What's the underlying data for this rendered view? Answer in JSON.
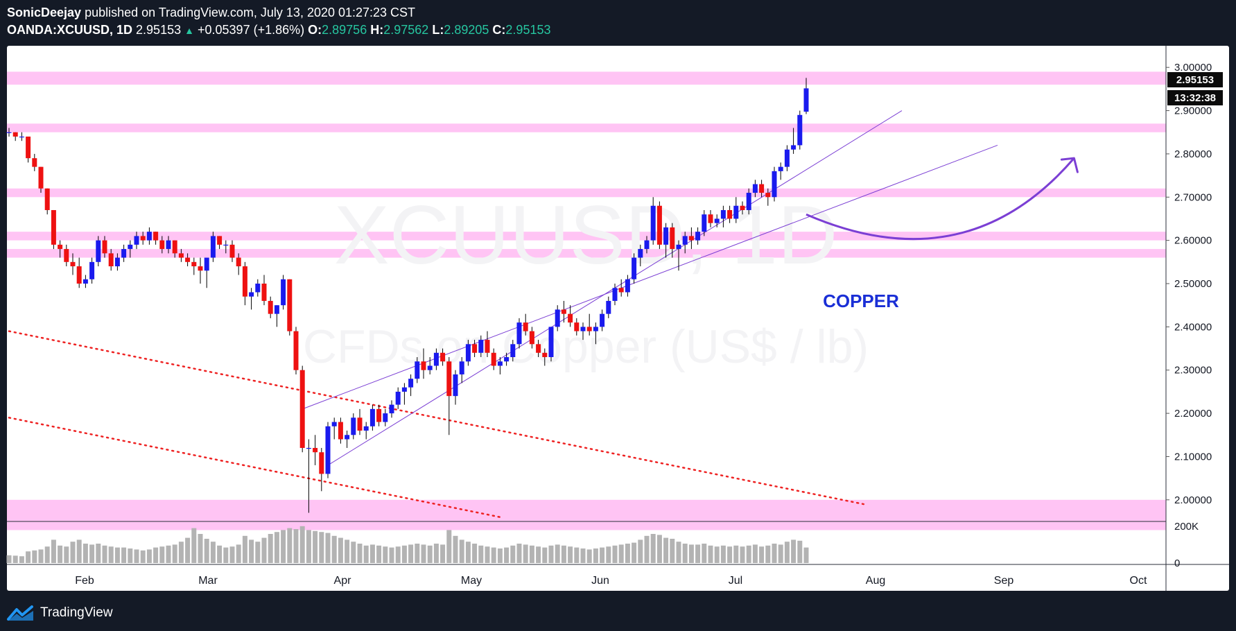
{
  "header": {
    "author": "SonicDeejay",
    "published_text": "published on TradingView.com, July 13, 2020 01:27:23 CST",
    "symbol": "OANDA:XCUUSD, 1D",
    "price": "2.95153",
    "change": "+0.05397 (+1.86%)",
    "o_label": "O:",
    "o_value": "2.89756",
    "h_label": "H:",
    "h_value": "2.97562",
    "l_label": "L:",
    "l_value": "2.89205",
    "c_label": "C:",
    "c_value": "2.95153"
  },
  "watermark": {
    "symbol": "XCUUSD, 1D",
    "name": "CFDs on Copper (US$ / lb)"
  },
  "annotation": {
    "text": "COPPER",
    "color": "#1a2fd6"
  },
  "price_box": {
    "last_price": "2.95153",
    "countdown": "13:32:38"
  },
  "footer": {
    "brand": "TradingView"
  },
  "colors": {
    "background": "#ffffff",
    "frame": "#141a26",
    "bull": "#1a1aee",
    "bear": "#ee1111",
    "zone": "#ffc4f4",
    "channel": "#7b3fd4",
    "trend_dotted": "#ee2222",
    "volume": "#b3b3b3",
    "arrow": "#7b3fd4"
  },
  "chart_data": {
    "type": "candlestick",
    "timeframe": "1D",
    "y_range": [
      1.95,
      3.05
    ],
    "y_ticks": [
      "3.00000",
      "2.90000",
      "2.80000",
      "2.70000",
      "2.60000",
      "2.50000",
      "2.40000",
      "2.30000",
      "2.20000",
      "2.10000",
      "2.00000"
    ],
    "volume_ticks": [
      "200K",
      "0"
    ],
    "x_ticks": [
      "Feb",
      "Mar",
      "Apr",
      "May",
      "Jun",
      "Jul",
      "Aug",
      "Sep",
      "Oct"
    ],
    "candles": [
      [
        2.85,
        2.86,
        2.84,
        2.85,
        40
      ],
      [
        2.85,
        2.85,
        2.83,
        2.84,
        38
      ],
      [
        2.84,
        2.85,
        2.83,
        2.84,
        35
      ],
      [
        2.84,
        2.84,
        2.78,
        2.79,
        60
      ],
      [
        2.79,
        2.8,
        2.76,
        2.77,
        65
      ],
      [
        2.77,
        2.77,
        2.71,
        2.72,
        70
      ],
      [
        2.72,
        2.72,
        2.66,
        2.67,
        85
      ],
      [
        2.67,
        2.67,
        2.58,
        2.59,
        120
      ],
      [
        2.59,
        2.6,
        2.56,
        2.58,
        90
      ],
      [
        2.58,
        2.59,
        2.54,
        2.55,
        85
      ],
      [
        2.55,
        2.57,
        2.52,
        2.54,
        110
      ],
      [
        2.54,
        2.56,
        2.49,
        2.5,
        120
      ],
      [
        2.5,
        2.52,
        2.49,
        2.51,
        100
      ],
      [
        2.51,
        2.56,
        2.5,
        2.55,
        95
      ],
      [
        2.55,
        2.61,
        2.54,
        2.6,
        100
      ],
      [
        2.6,
        2.61,
        2.56,
        2.57,
        90
      ],
      [
        2.57,
        2.58,
        2.53,
        2.54,
        85
      ],
      [
        2.54,
        2.57,
        2.53,
        2.56,
        80
      ],
      [
        2.56,
        2.59,
        2.55,
        2.58,
        80
      ],
      [
        2.58,
        2.6,
        2.56,
        2.59,
        75
      ],
      [
        2.59,
        2.62,
        2.58,
        2.61,
        70
      ],
      [
        2.61,
        2.62,
        2.59,
        2.6,
        65
      ],
      [
        2.6,
        2.63,
        2.59,
        2.62,
        70
      ],
      [
        2.62,
        2.62,
        2.59,
        2.6,
        80
      ],
      [
        2.6,
        2.61,
        2.57,
        2.58,
        85
      ],
      [
        2.58,
        2.61,
        2.57,
        2.6,
        90
      ],
      [
        2.6,
        2.6,
        2.56,
        2.57,
        95
      ],
      [
        2.57,
        2.58,
        2.55,
        2.56,
        110
      ],
      [
        2.56,
        2.57,
        2.54,
        2.55,
        130
      ],
      [
        2.55,
        2.56,
        2.52,
        2.54,
        180
      ],
      [
        2.54,
        2.56,
        2.5,
        2.53,
        150
      ],
      [
        2.53,
        2.55,
        2.49,
        2.56,
        125
      ],
      [
        2.56,
        2.62,
        2.55,
        2.61,
        110
      ],
      [
        2.61,
        2.61,
        2.58,
        2.59,
        90
      ],
      [
        2.59,
        2.6,
        2.57,
        2.59,
        80
      ],
      [
        2.59,
        2.6,
        2.55,
        2.56,
        85
      ],
      [
        2.56,
        2.57,
        2.52,
        2.54,
        95
      ],
      [
        2.54,
        2.55,
        2.45,
        2.47,
        140
      ],
      [
        2.47,
        2.49,
        2.44,
        2.48,
        120
      ],
      [
        2.48,
        2.51,
        2.47,
        2.5,
        110
      ],
      [
        2.5,
        2.52,
        2.45,
        2.46,
        130
      ],
      [
        2.46,
        2.47,
        2.42,
        2.43,
        150
      ],
      [
        2.43,
        2.45,
        2.4,
        2.45,
        160
      ],
      [
        2.45,
        2.52,
        2.44,
        2.51,
        170
      ],
      [
        2.51,
        2.51,
        2.38,
        2.39,
        180
      ],
      [
        2.39,
        2.4,
        2.29,
        2.3,
        175
      ],
      [
        2.3,
        2.31,
        2.11,
        2.12,
        190
      ],
      [
        2.12,
        2.14,
        1.97,
        2.12,
        170
      ],
      [
        2.12,
        2.15,
        2.08,
        2.11,
        165
      ],
      [
        2.11,
        2.12,
        2.02,
        2.06,
        160
      ],
      [
        2.06,
        2.18,
        2.05,
        2.17,
        155
      ],
      [
        2.17,
        2.19,
        2.14,
        2.18,
        140
      ],
      [
        2.18,
        2.19,
        2.13,
        2.14,
        130
      ],
      [
        2.14,
        2.16,
        2.12,
        2.15,
        120
      ],
      [
        2.15,
        2.2,
        2.14,
        2.19,
        110
      ],
      [
        2.19,
        2.21,
        2.15,
        2.16,
        100
      ],
      [
        2.16,
        2.18,
        2.14,
        2.17,
        90
      ],
      [
        2.17,
        2.22,
        2.16,
        2.21,
        95
      ],
      [
        2.21,
        2.22,
        2.17,
        2.18,
        90
      ],
      [
        2.18,
        2.21,
        2.17,
        2.2,
        85
      ],
      [
        2.2,
        2.23,
        2.19,
        2.22,
        80
      ],
      [
        2.22,
        2.26,
        2.21,
        2.25,
        85
      ],
      [
        2.25,
        2.27,
        2.22,
        2.26,
        90
      ],
      [
        2.26,
        2.29,
        2.24,
        2.28,
        95
      ],
      [
        2.28,
        2.33,
        2.27,
        2.32,
        100
      ],
      [
        2.32,
        2.35,
        2.28,
        2.3,
        95
      ],
      [
        2.3,
        2.33,
        2.29,
        2.31,
        90
      ],
      [
        2.31,
        2.35,
        2.3,
        2.34,
        100
      ],
      [
        2.34,
        2.35,
        2.31,
        2.32,
        95
      ],
      [
        2.32,
        2.33,
        2.15,
        2.24,
        170
      ],
      [
        2.24,
        2.3,
        2.22,
        2.29,
        140
      ],
      [
        2.29,
        2.33,
        2.27,
        2.32,
        120
      ],
      [
        2.32,
        2.37,
        2.31,
        2.36,
        110
      ],
      [
        2.36,
        2.37,
        2.33,
        2.34,
        100
      ],
      [
        2.34,
        2.38,
        2.33,
        2.37,
        90
      ],
      [
        2.37,
        2.39,
        2.33,
        2.34,
        85
      ],
      [
        2.34,
        2.35,
        2.3,
        2.31,
        80
      ],
      [
        2.31,
        2.33,
        2.29,
        2.32,
        75
      ],
      [
        2.32,
        2.34,
        2.31,
        2.33,
        80
      ],
      [
        2.33,
        2.37,
        2.32,
        2.36,
        90
      ],
      [
        2.36,
        2.42,
        2.35,
        2.41,
        100
      ],
      [
        2.41,
        2.43,
        2.38,
        2.39,
        95
      ],
      [
        2.39,
        2.4,
        2.35,
        2.36,
        90
      ],
      [
        2.36,
        2.37,
        2.33,
        2.34,
        85
      ],
      [
        2.34,
        2.35,
        2.31,
        2.33,
        80
      ],
      [
        2.33,
        2.4,
        2.32,
        2.4,
        90
      ],
      [
        2.4,
        2.45,
        2.39,
        2.44,
        95
      ],
      [
        2.44,
        2.46,
        2.41,
        2.43,
        90
      ],
      [
        2.43,
        2.45,
        2.4,
        2.41,
        85
      ],
      [
        2.41,
        2.42,
        2.38,
        2.39,
        80
      ],
      [
        2.39,
        2.41,
        2.37,
        2.4,
        75
      ],
      [
        2.4,
        2.43,
        2.38,
        2.39,
        70
      ],
      [
        2.39,
        2.41,
        2.36,
        2.4,
        75
      ],
      [
        2.4,
        2.44,
        2.39,
        2.43,
        80
      ],
      [
        2.43,
        2.47,
        2.42,
        2.46,
        85
      ],
      [
        2.46,
        2.5,
        2.45,
        2.49,
        90
      ],
      [
        2.49,
        2.51,
        2.47,
        2.48,
        95
      ],
      [
        2.48,
        2.52,
        2.47,
        2.51,
        100
      ],
      [
        2.51,
        2.57,
        2.5,
        2.56,
        105
      ],
      [
        2.56,
        2.59,
        2.54,
        2.58,
        120
      ],
      [
        2.58,
        2.61,
        2.57,
        2.6,
        140
      ],
      [
        2.6,
        2.7,
        2.59,
        2.68,
        150
      ],
      [
        2.68,
        2.69,
        2.58,
        2.59,
        145
      ],
      [
        2.59,
        2.64,
        2.56,
        2.63,
        130
      ],
      [
        2.63,
        2.64,
        2.56,
        2.58,
        125
      ],
      [
        2.58,
        2.6,
        2.53,
        2.59,
        110
      ],
      [
        2.59,
        2.62,
        2.57,
        2.61,
        100
      ],
      [
        2.61,
        2.63,
        2.58,
        2.6,
        95
      ],
      [
        2.6,
        2.63,
        2.59,
        2.62,
        95
      ],
      [
        2.62,
        2.67,
        2.61,
        2.66,
        100
      ],
      [
        2.66,
        2.67,
        2.63,
        2.64,
        90
      ],
      [
        2.64,
        2.66,
        2.63,
        2.65,
        85
      ],
      [
        2.65,
        2.68,
        2.63,
        2.67,
        90
      ],
      [
        2.67,
        2.68,
        2.64,
        2.65,
        85
      ],
      [
        2.65,
        2.7,
        2.64,
        2.68,
        90
      ],
      [
        2.68,
        2.69,
        2.66,
        2.67,
        85
      ],
      [
        2.67,
        2.72,
        2.66,
        2.71,
        90
      ],
      [
        2.71,
        2.74,
        2.7,
        2.73,
        95
      ],
      [
        2.73,
        2.74,
        2.7,
        2.71,
        85
      ],
      [
        2.71,
        2.72,
        2.68,
        2.7,
        90
      ],
      [
        2.7,
        2.77,
        2.69,
        2.76,
        100
      ],
      [
        2.76,
        2.78,
        2.74,
        2.77,
        95
      ],
      [
        2.77,
        2.82,
        2.76,
        2.81,
        110
      ],
      [
        2.81,
        2.86,
        2.8,
        2.82,
        120
      ],
      [
        2.82,
        2.9,
        2.81,
        2.89,
        115
      ],
      [
        2.89756,
        2.97562,
        2.89205,
        2.95153,
        80
      ]
    ],
    "zones": [
      [
        2.96,
        2.99
      ],
      [
        2.85,
        2.87
      ],
      [
        2.7,
        2.72
      ],
      [
        2.6,
        2.62
      ],
      [
        2.56,
        2.58
      ],
      [
        1.93,
        2.0
      ]
    ],
    "channel_lines": [
      {
        "from": [
          50,
          2.08
        ],
        "to": [
          140,
          2.9
        ]
      },
      {
        "from": [
          46,
          2.21
        ],
        "to": [
          155,
          2.82
        ]
      }
    ],
    "dotted_lines": [
      {
        "from": [
          0,
          2.39
        ],
        "to": [
          134,
          1.99
        ]
      },
      {
        "from": [
          0,
          2.19
        ],
        "to": [
          77,
          1.96
        ]
      }
    ],
    "curved_arrow": {
      "start": [
        125,
        2.66
      ],
      "control": [
        150,
        2.5
      ],
      "end": [
        167,
        2.79
      ]
    }
  }
}
